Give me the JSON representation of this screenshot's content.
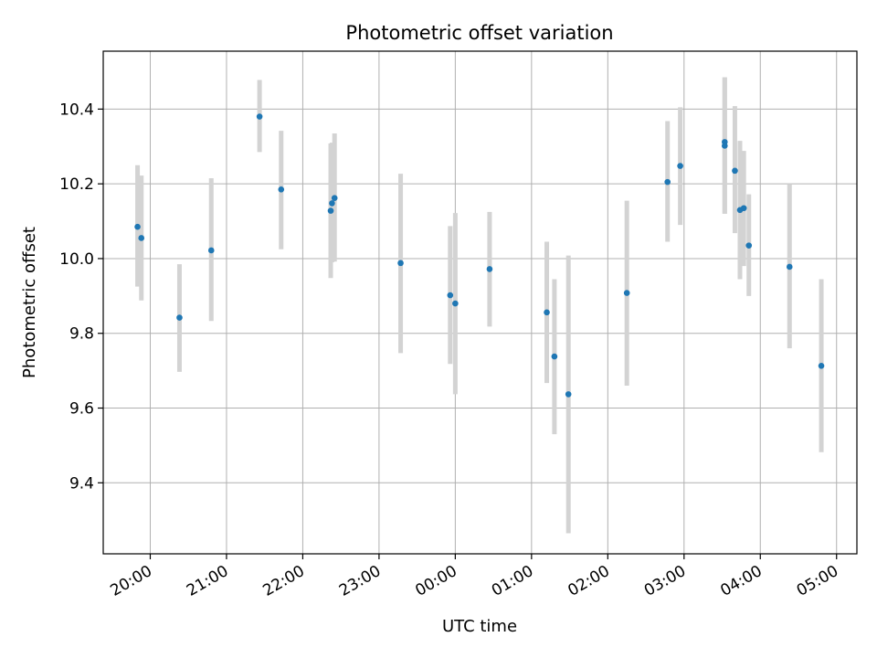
{
  "chart_data": {
    "type": "scatter",
    "title": "Photometric offset variation",
    "xlabel": "UTC time",
    "ylabel": "Photometric offset",
    "x_ticks": [
      "20:00",
      "21:00",
      "22:00",
      "23:00",
      "00:00",
      "01:00",
      "02:00",
      "03:00",
      "04:00",
      "05:00"
    ],
    "y_ticks": [
      "9.4",
      "9.6",
      "9.8",
      "10.0",
      "10.2",
      "10.4"
    ],
    "xlim": [
      "19:23",
      "05:16"
    ],
    "ylim": [
      9.21,
      10.555
    ],
    "grid": true,
    "colors": {
      "point": "#1f77b4",
      "error_bar": "#d3d3d3",
      "grid": "#b0b0b0",
      "frame": "#000000"
    },
    "series": [
      {
        "points": [
          {
            "x": "19:50",
            "y": 10.085,
            "y_low": 9.925,
            "y_high": 10.25
          },
          {
            "x": "19:53",
            "y": 10.055,
            "y_low": 9.888,
            "y_high": 10.222
          },
          {
            "x": "20:23",
            "y": 9.842,
            "y_low": 9.697,
            "y_high": 9.985
          },
          {
            "x": "20:48",
            "y": 10.022,
            "y_low": 9.833,
            "y_high": 10.215
          },
          {
            "x": "21:26",
            "y": 10.38,
            "y_low": 10.285,
            "y_high": 10.478
          },
          {
            "x": "21:43",
            "y": 10.185,
            "y_low": 10.025,
            "y_high": 10.342
          },
          {
            "x": "22:22",
            "y": 10.128,
            "y_low": 9.948,
            "y_high": 10.308
          },
          {
            "x": "22:23",
            "y": 10.148,
            "y_low": 9.99,
            "y_high": 10.31
          },
          {
            "x": "22:25",
            "y": 10.162,
            "y_low": 9.992,
            "y_high": 10.335
          },
          {
            "x": "23:17",
            "y": 9.988,
            "y_low": 9.747,
            "y_high": 10.227
          },
          {
            "x": "23:56",
            "y": 9.902,
            "y_low": 9.718,
            "y_high": 10.087
          },
          {
            "x": "00:00",
            "y": 9.88,
            "y_low": 9.637,
            "y_high": 10.122
          },
          {
            "x": "00:27",
            "y": 9.972,
            "y_low": 9.818,
            "y_high": 10.125
          },
          {
            "x": "01:12",
            "y": 9.856,
            "y_low": 9.667,
            "y_high": 10.045
          },
          {
            "x": "01:18",
            "y": 9.738,
            "y_low": 9.53,
            "y_high": 9.945
          },
          {
            "x": "01:29",
            "y": 9.637,
            "y_low": 9.265,
            "y_high": 10.008
          },
          {
            "x": "02:15",
            "y": 9.908,
            "y_low": 9.66,
            "y_high": 10.155
          },
          {
            "x": "02:47",
            "y": 10.205,
            "y_low": 10.045,
            "y_high": 10.368
          },
          {
            "x": "02:57",
            "y": 10.248,
            "y_low": 10.09,
            "y_high": 10.405
          },
          {
            "x": "03:32",
            "y": 10.312,
            "y_low": 10.12,
            "y_high": 10.485
          },
          {
            "x": "03:32",
            "y": 10.302,
            "y_low": 10.12,
            "y_high": 10.485
          },
          {
            "x": "03:40",
            "y": 10.235,
            "y_low": 10.068,
            "y_high": 10.408
          },
          {
            "x": "03:44",
            "y": 10.13,
            "y_low": 9.945,
            "y_high": 10.315
          },
          {
            "x": "03:47",
            "y": 10.135,
            "y_low": 9.98,
            "y_high": 10.288
          },
          {
            "x": "03:51",
            "y": 10.035,
            "y_low": 9.9,
            "y_high": 10.172
          },
          {
            "x": "04:23",
            "y": 9.978,
            "y_low": 9.76,
            "y_high": 10.198
          },
          {
            "x": "04:48",
            "y": 9.713,
            "y_low": 9.482,
            "y_high": 9.945
          }
        ]
      }
    ]
  }
}
